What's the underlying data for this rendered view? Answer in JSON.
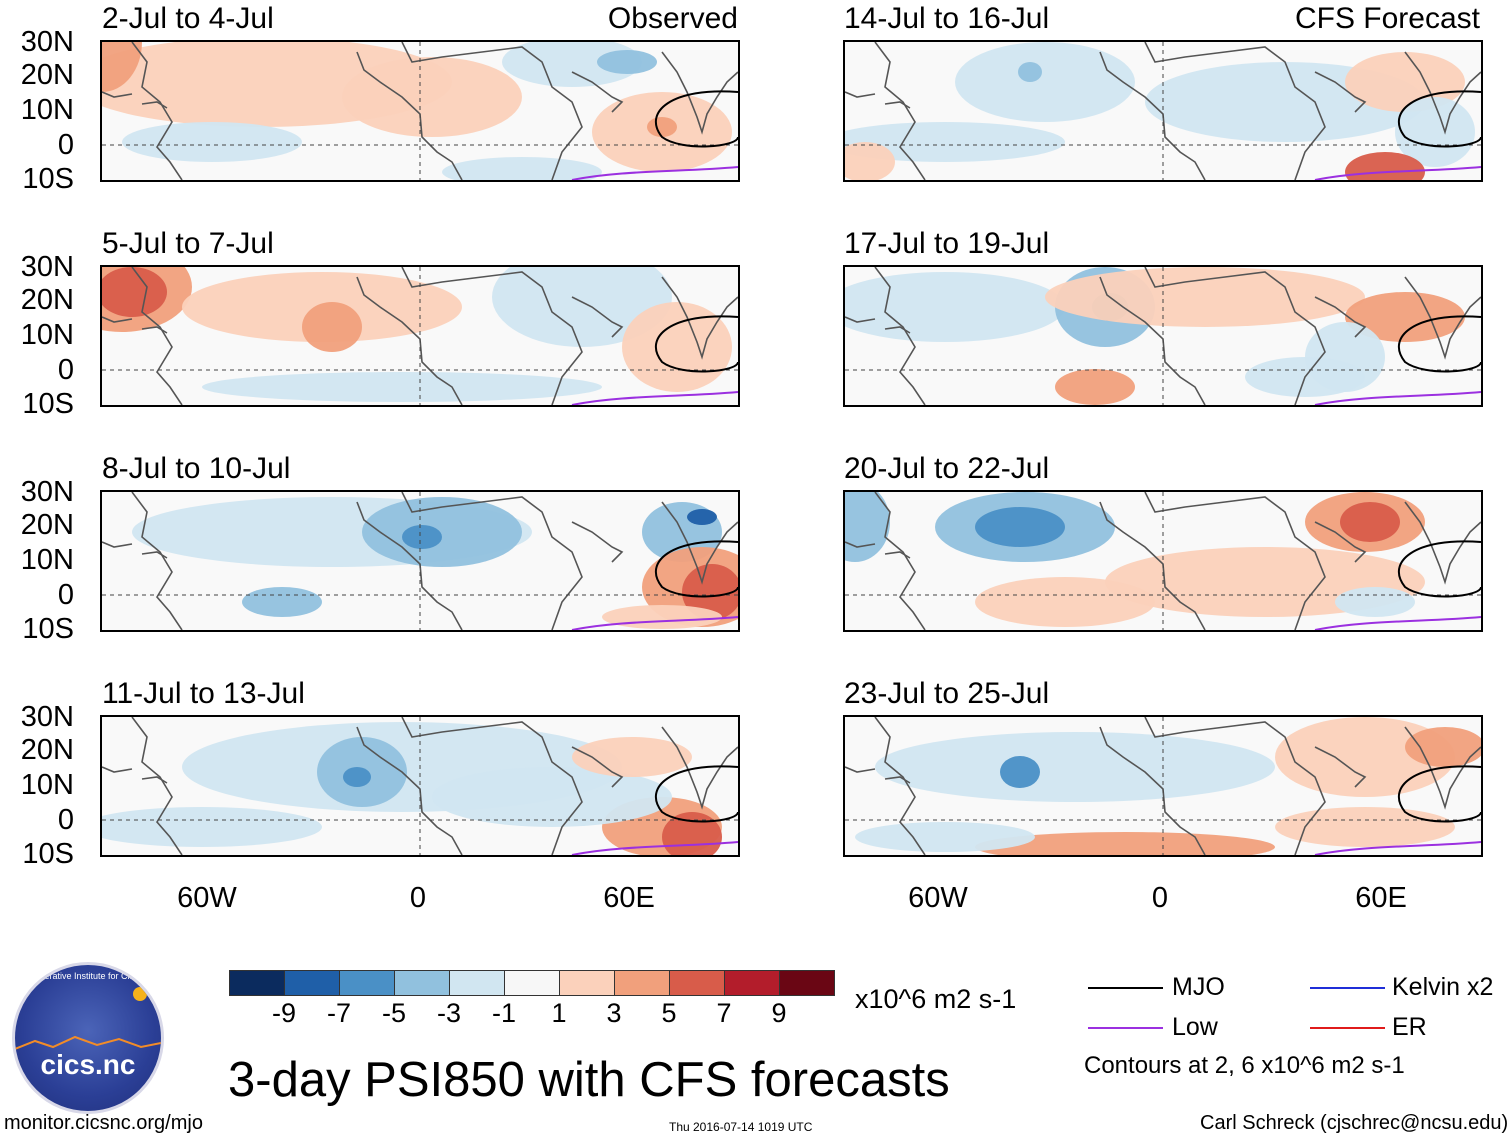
{
  "title": "3-day PSI850 with CFS forecasts",
  "column_labels": {
    "observed": "Observed",
    "forecast": "CFS Forecast"
  },
  "panels": [
    {
      "period": "2-Jul to 4-Jul",
      "type": "observed"
    },
    {
      "period": "5-Jul to 7-Jul",
      "type": "observed"
    },
    {
      "period": "8-Jul to 10-Jul",
      "type": "observed"
    },
    {
      "period": "11-Jul to 13-Jul",
      "type": "observed"
    },
    {
      "period": "14-Jul to 16-Jul",
      "type": "forecast"
    },
    {
      "period": "17-Jul to 19-Jul",
      "type": "forecast"
    },
    {
      "period": "20-Jul to 22-Jul",
      "type": "forecast"
    },
    {
      "period": "23-Jul to 25-Jul",
      "type": "forecast"
    }
  ],
  "lat_labels": [
    "30N",
    "20N",
    "10N",
    "0",
    "10S"
  ],
  "lon_labels": [
    "60W",
    "0",
    "60E"
  ],
  "colorbar": {
    "ticks": [
      "-9",
      "-7",
      "-5",
      "-3",
      "-1",
      "1",
      "3",
      "5",
      "7",
      "9"
    ],
    "colors": [
      "#0b2b5e",
      "#1f5fa8",
      "#4a90c6",
      "#91c1de",
      "#d1e6f1",
      "#f7f7f7",
      "#fbd1bb",
      "#f1a07c",
      "#d85c4a",
      "#b31d2b",
      "#6a0614"
    ],
    "units": "x10^6 m2 s-1"
  },
  "legend": {
    "items": [
      {
        "label": "MJO",
        "color": "#000000"
      },
      {
        "label": "Kelvin x2",
        "color": "#1f2ed8"
      },
      {
        "label": "Low",
        "color": "#9b30e0"
      },
      {
        "label": "ER",
        "color": "#e01b1b"
      }
    ],
    "note": "Contours at 2, 6 x10^6 m2 s-1"
  },
  "logo": {
    "text": "cics.nc",
    "arc_text": "Cooperative Institute for Climate and Satellites"
  },
  "footer": {
    "url": "monitor.cicsnc.org/mjo",
    "timestamp": "Thu 2016-07-14 1019 UTC",
    "credit": "Carl Schreck (cjschrec@ncsu.edu)"
  }
}
